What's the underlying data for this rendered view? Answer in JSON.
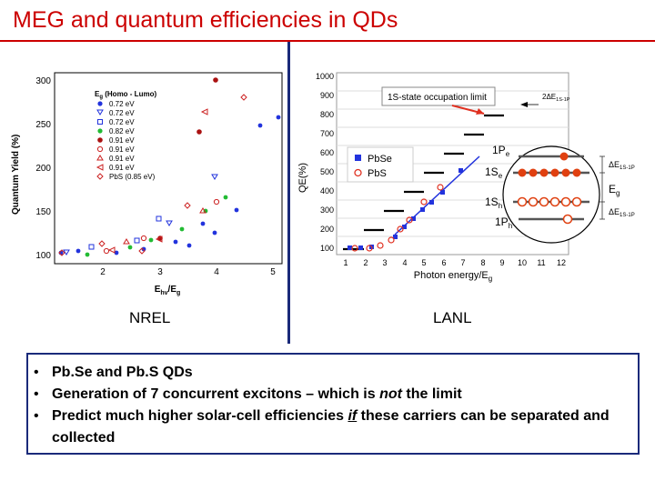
{
  "title": "MEG and quantum efficiencies in QDs",
  "captions": {
    "left": "NREL",
    "right": "LANL"
  },
  "left_chart": {
    "ylabel": "Quantum Yield (%)",
    "xlabel_main": "E",
    "xlabel_sub": "hv",
    "xlabel_tail": "/E",
    "xlabel_tail_sub": "g",
    "yticks": [
      "100",
      "150",
      "200",
      "250",
      "300"
    ],
    "xticks": [
      "2",
      "3",
      "4",
      "5"
    ],
    "legend_head_main": "E",
    "legend_head_sub": "g",
    "legend_head_rest": " (Homo - Lumo)",
    "legend": [
      "0.72 eV",
      "0.72 eV",
      "0.72 eV",
      "0.82 eV",
      "0.91 eV",
      "0.91 eV",
      "0.91 eV",
      "0.91 eV",
      "PbS (0.85 eV)"
    ]
  },
  "right_chart": {
    "ylabel": "QE(%)",
    "xlabel": "Photon energy/E",
    "xlabel_sub": "g",
    "yticks": [
      "100",
      "200",
      "300",
      "400",
      "500",
      "600",
      "700",
      "800",
      "900",
      "1000"
    ],
    "xticks": [
      "1",
      "2",
      "3",
      "4",
      "5",
      "6",
      "7",
      "8",
      "9",
      "10",
      "11",
      "12"
    ],
    "annotation": "1S-state occupation limit",
    "legend": [
      "PbSe",
      "PbS"
    ],
    "inset_labels": {
      "pe": "1P",
      "pe_sub": "e",
      "se": "1S",
      "se_sub": "e",
      "sh": "1S",
      "sh_sub": "h",
      "ph": "1P",
      "ph_sub": "h",
      "d_top": "ΔE",
      "d_top_sub": "1S-1P",
      "eg": "E",
      "eg_sub": "g",
      "d_bot": "ΔE",
      "d_bot_sub": "1S-1P",
      "d_arrow": "2ΔE",
      "d_arrow_sub": "1S-1P"
    }
  },
  "bullets": [
    {
      "pre": "Pb.Se and Pb.S QDs",
      "em": "",
      "post": "",
      "mode": ""
    },
    {
      "pre": "Generation of 7 concurrent excitons – which is ",
      "em": "not",
      "post": " the limit",
      "mode": "i"
    },
    {
      "pre": "Predict much higher solar-cell efficiencies ",
      "em": "if",
      "post": " these carriers can be separated and collected",
      "mode": "iu"
    }
  ],
  "colors": {
    "title": "#cc0000",
    "accent": "#1a2a7a",
    "pbse": "#2233dd",
    "pbs": "#e03020"
  }
}
